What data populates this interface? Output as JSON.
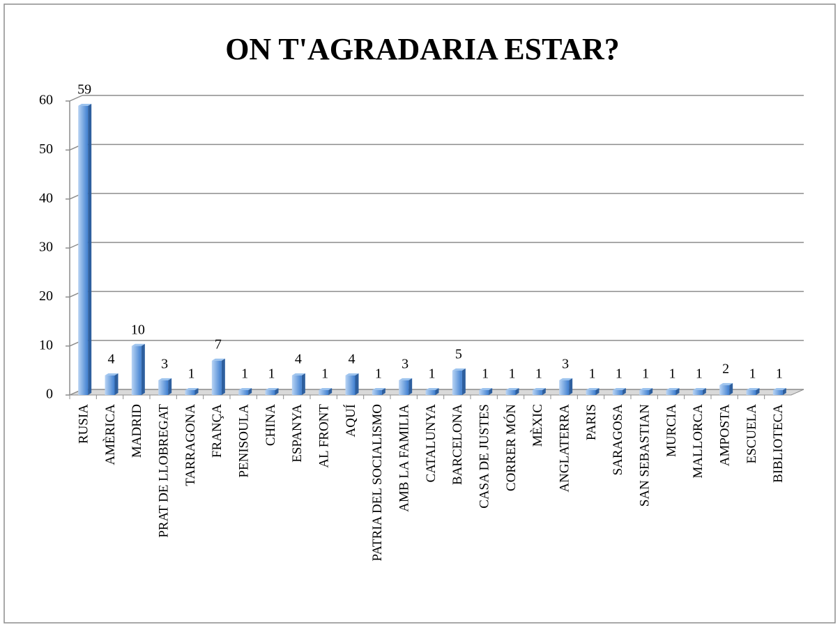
{
  "chart_data": {
    "type": "bar",
    "title": "ON T'AGRADARIA ESTAR?",
    "categories": [
      "RUSIA",
      "AMÈRICA",
      "MADRID",
      "PRAT DE LLOBREGAT",
      "TARRAGONA",
      "FRANÇA",
      "PENISOULA",
      "CHINA",
      "ESPANYA",
      "AL FRONT",
      "AQUÍ",
      "PATRIA DEL SOCIALISMO",
      "AMB LA FAMILIA",
      "CATALUNYA",
      "BARCELONA",
      "CASA DE JUSTES",
      "CORRER MÓN",
      "MÈXIC",
      "ANGLATERRA",
      "PARIS",
      "SARAGOSA",
      "SAN SEBASTIAN",
      "MURCIA",
      "MALLORCA",
      "AMPOSTA",
      "ESCUELA",
      "BIBLIOTECA"
    ],
    "values": [
      59,
      4,
      10,
      3,
      1,
      7,
      1,
      1,
      4,
      1,
      4,
      1,
      3,
      1,
      5,
      1,
      1,
      1,
      3,
      1,
      1,
      1,
      1,
      1,
      2,
      1,
      1
    ],
    "color": "#5b9bd5",
    "ylim": [
      0,
      60
    ],
    "yticks": [
      0,
      10,
      20,
      30,
      40,
      50,
      60
    ],
    "grid": true
  }
}
